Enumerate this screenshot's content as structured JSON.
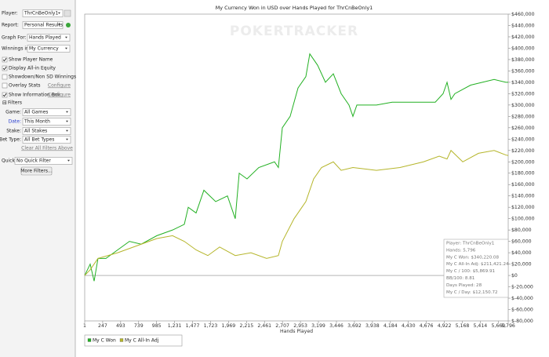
{
  "sidebar": {
    "fields": [
      {
        "label": "Player:",
        "value": "ThrCnBeOnly1"
      },
      {
        "label": "Report:",
        "value": "Personal Results"
      },
      {
        "label": "Graph For:",
        "value": "Hands Played"
      },
      {
        "label": "Winnings in:",
        "value": "My Currency"
      }
    ],
    "options": [
      {
        "label": "Show Player Name",
        "checked": true
      },
      {
        "label": "Display All-in Equity",
        "checked": true
      },
      {
        "label": "Showdown/Non SD Winnings",
        "checked": false
      },
      {
        "label": "Overlay Stats",
        "checked": false,
        "link": "Configure"
      },
      {
        "label": "Show Information Box",
        "checked": true,
        "link": "Configure"
      }
    ],
    "filters_heading": "Filters",
    "filters": [
      {
        "label": "Game:",
        "value": "All Games"
      },
      {
        "label": "Date:",
        "value": "This Month"
      },
      {
        "label": "Stake:",
        "value": "All Stakes"
      },
      {
        "label": "Bet Type:",
        "value": "All Bet Types"
      }
    ],
    "clear_link": "Clear All Filters Above",
    "quick": {
      "label": "Quick:",
      "value": "No Quick Filter"
    },
    "more_button": "More Filters..."
  },
  "chart_data": {
    "type": "line",
    "title": "My Currency Won in USD over Hands Played for ThrCnBeOnly1",
    "watermark": "POKERTRACKER",
    "x_label": "Hands Played",
    "xlim": [
      1,
      5796
    ],
    "xticks": [
      1,
      247,
      493,
      739,
      985,
      {
        "value": 1231,
        "label": "1,231"
      },
      {
        "value": 1477,
        "label": "1,477"
      },
      {
        "value": 1723,
        "label": "1,723"
      },
      {
        "value": 1969,
        "label": "1,969"
      },
      {
        "value": 2215,
        "label": "2,215"
      },
      {
        "value": 2461,
        "label": "2,461"
      },
      {
        "value": 2707,
        "label": "2,707"
      },
      {
        "value": 2953,
        "label": "2,953"
      },
      {
        "value": 3199,
        "label": "3,199"
      },
      {
        "value": 3446,
        "label": "3,446"
      },
      {
        "value": 3692,
        "label": "3,692"
      },
      {
        "value": 3938,
        "label": "3,938"
      },
      {
        "value": 4184,
        "label": "4,184"
      },
      {
        "value": 4430,
        "label": "4,430"
      },
      {
        "value": 4676,
        "label": "4,676"
      },
      {
        "value": 4922,
        "label": "4,922"
      },
      {
        "value": 5168,
        "label": "5,168"
      },
      {
        "value": 5414,
        "label": "5,414"
      },
      {
        "value": 5660,
        "label": "5,660"
      },
      {
        "value": 5796,
        "label": "5,796"
      }
    ],
    "ylim": [
      -80000,
      460000
    ],
    "yticks": [
      {
        "value": 460000,
        "label": "$460,000"
      },
      {
        "value": 440000,
        "label": "$440,000"
      },
      {
        "value": 420000,
        "label": "$420,000"
      },
      {
        "value": 400000,
        "label": "$400,000"
      },
      {
        "value": 380000,
        "label": "$380,000"
      },
      {
        "value": 360000,
        "label": "$360,000"
      },
      {
        "value": 340000,
        "label": "$340,000"
      },
      {
        "value": 320000,
        "label": "$320,000"
      },
      {
        "value": 300000,
        "label": "$300,000"
      },
      {
        "value": 280000,
        "label": "$280,000"
      },
      {
        "value": 260000,
        "label": "$260,000"
      },
      {
        "value": 240000,
        "label": "$240,000"
      },
      {
        "value": 220000,
        "label": "$220,000"
      },
      {
        "value": 200000,
        "label": "$200,000"
      },
      {
        "value": 180000,
        "label": "$180,000"
      },
      {
        "value": 160000,
        "label": "$160,000"
      },
      {
        "value": 140000,
        "label": "$140,000"
      },
      {
        "value": 120000,
        "label": "$120,000"
      },
      {
        "value": 100000,
        "label": "$100,000"
      },
      {
        "value": 80000,
        "label": "$80,000"
      },
      {
        "value": 60000,
        "label": "$60,000"
      },
      {
        "value": 40000,
        "label": "$40,000"
      },
      {
        "value": 20000,
        "label": "$20,000"
      },
      {
        "value": 0,
        "label": "$0"
      },
      {
        "value": -20000,
        "label": "$-20,000"
      },
      {
        "value": -40000,
        "label": "$-40,000"
      },
      {
        "value": -60000,
        "label": "$-60,000"
      },
      {
        "value": -80000,
        "label": "$-80,000"
      }
    ],
    "series": [
      {
        "name": "My C Won",
        "color": "#22b022",
        "x": [
          1,
          76,
          130,
          183,
          291,
          452,
          613,
          774,
          988,
          1203,
          1364,
          1418,
          1525,
          1632,
          1793,
          1954,
          2061,
          2115,
          2222,
          2383,
          2598,
          2651,
          2705,
          2812,
          2920,
          3027,
          3081,
          3188,
          3295,
          3403,
          3510,
          3617,
          3671,
          3725,
          3993,
          4208,
          4530,
          4798,
          4905,
          4959,
          5013,
          5066,
          5281,
          5603,
          5764,
          5796
        ],
        "values": [
          0,
          20000,
          -10000,
          30000,
          30000,
          45000,
          60000,
          55000,
          70000,
          80000,
          90000,
          120000,
          110000,
          150000,
          130000,
          140000,
          100000,
          180000,
          170000,
          190000,
          200000,
          190000,
          260000,
          280000,
          330000,
          350000,
          390000,
          370000,
          340000,
          355000,
          320000,
          300000,
          280000,
          300000,
          300000,
          305000,
          305000,
          305000,
          320000,
          340000,
          310000,
          320000,
          335000,
          345000,
          340000,
          340000
        ]
      },
      {
        "name": "My C All-In Adj",
        "color": "#b5b52a",
        "x": [
          1,
          76,
          183,
          452,
          774,
          988,
          1203,
          1364,
          1525,
          1686,
          1847,
          2061,
          2276,
          2490,
          2651,
          2705,
          2866,
          3027,
          3134,
          3242,
          3403,
          3510,
          3671,
          3993,
          4315,
          4637,
          4852,
          4959,
          5013,
          5174,
          5389,
          5603,
          5764,
          5796
        ],
        "values": [
          0,
          10000,
          30000,
          40000,
          55000,
          65000,
          70000,
          60000,
          45000,
          35000,
          50000,
          35000,
          40000,
          30000,
          35000,
          60000,
          100000,
          130000,
          170000,
          190000,
          200000,
          185000,
          190000,
          185000,
          190000,
          200000,
          210000,
          205000,
          220000,
          200000,
          215000,
          220000,
          212000,
          211000
        ]
      }
    ],
    "info_box": [
      "Player: ThrCnBeOnly1",
      "Hands: 5,796",
      "My C Won: $340,220.08",
      "My C All-In Adj: $211,421.24",
      "My C / 100: $5,869.91",
      "BB/100: 8.81",
      "Days Played: 28",
      "My C / Day: $12,150.72"
    ]
  }
}
